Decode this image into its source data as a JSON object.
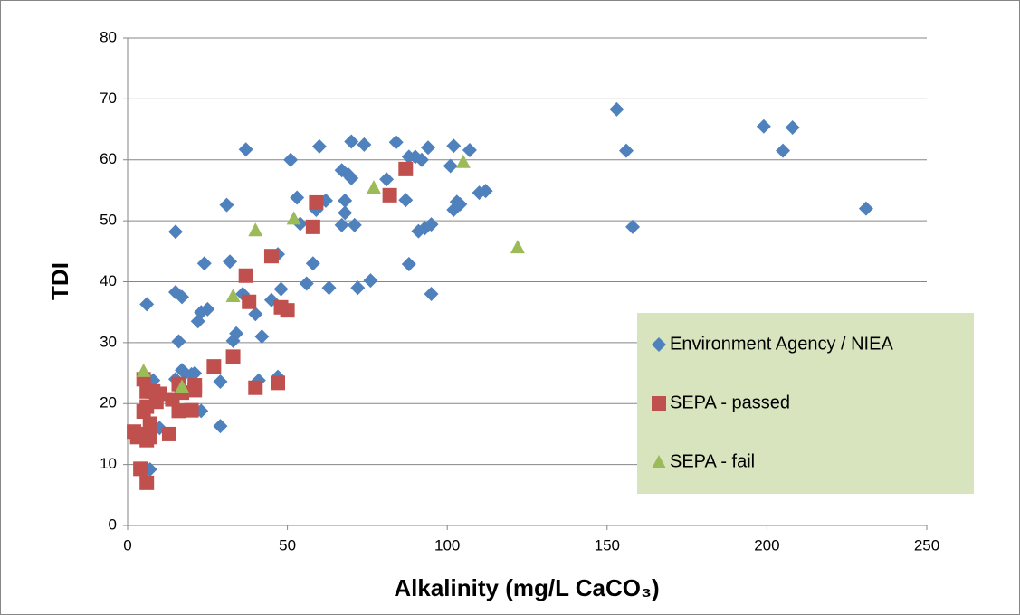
{
  "chart_data": {
    "type": "scatter",
    "xlabel": "Alkalinity (mg/L CaCO₃)",
    "ylabel": "TDI",
    "xlim": [
      0,
      250
    ],
    "xticks": [
      0,
      50,
      100,
      150,
      200,
      250
    ],
    "ylim": [
      0,
      80
    ],
    "yticks": [
      0,
      10,
      20,
      30,
      40,
      50,
      60,
      70,
      80
    ],
    "grid": true,
    "legend": "lower right",
    "legend_color": "#d7e4bd",
    "series": [
      {
        "name": "Environment Agency / NIEA",
        "color": "#4f81bd",
        "marker": "diamond",
        "x": [
          6,
          7,
          6,
          8,
          10,
          15,
          15,
          15,
          17,
          16,
          17,
          18,
          20,
          21,
          22,
          23,
          23,
          24,
          25,
          29,
          29,
          31,
          32,
          33,
          34,
          36,
          37,
          40,
          41,
          42,
          45,
          47,
          47,
          48,
          51,
          53,
          54,
          56,
          58,
          59,
          60,
          62,
          63,
          67,
          67,
          68,
          68,
          69,
          70,
          70,
          71,
          72,
          74,
          76,
          81,
          84,
          87,
          88,
          88,
          90,
          91,
          92,
          93,
          94,
          95,
          95,
          101,
          102,
          102,
          103,
          104,
          107,
          110,
          112,
          153,
          156,
          158,
          199,
          205,
          208,
          231
        ],
        "values": [
          36.3,
          9.2,
          14,
          23.8,
          16,
          48.2,
          38.3,
          24,
          37.5,
          30.2,
          25.5,
          25,
          24.8,
          25,
          33.5,
          18.8,
          35,
          43,
          35.5,
          16.3,
          23.6,
          52.6,
          43.3,
          30.3,
          31.5,
          38,
          61.7,
          34.7,
          23.8,
          31,
          37,
          44.5,
          24.4,
          38.8,
          60,
          53.8,
          49.5,
          39.7,
          43,
          51.8,
          62.2,
          53.3,
          39,
          58.3,
          49.3,
          53.3,
          51.3,
          57.6,
          57,
          63,
          49.3,
          39,
          62.5,
          40.2,
          56.8,
          62.9,
          53.4,
          60.5,
          42.9,
          60.5,
          48.3,
          60,
          48.8,
          62,
          49.4,
          38,
          59,
          62.3,
          51.8,
          53.1,
          52.7,
          61.6,
          54.6,
          54.9,
          68.3,
          61.5,
          49,
          65.5,
          61.5,
          65.3,
          52
        ]
      },
      {
        "name": "SEPA - passed",
        "color": "#c0504d",
        "marker": "square",
        "x": [
          2,
          3,
          4,
          4,
          5,
          5,
          6,
          6,
          6,
          6,
          7,
          7,
          8,
          9,
          10,
          13,
          14,
          16,
          16,
          17,
          20,
          21,
          21,
          27,
          33,
          37,
          38,
          40,
          45,
          47,
          48,
          50,
          58,
          59,
          82,
          87
        ],
        "values": [
          15.4,
          14.5,
          9.3,
          15,
          24,
          18.7,
          22,
          14,
          19.5,
          7,
          16.7,
          14.5,
          22,
          20.3,
          21.6,
          15,
          20.7,
          23.2,
          18.8,
          21.8,
          18.9,
          23,
          22.2,
          26.1,
          27.7,
          41,
          36.7,
          22.6,
          44.2,
          23.4,
          35.8,
          35.3,
          49,
          53,
          54.2,
          58.5
        ]
      },
      {
        "name": "SEPA - fail",
        "color": "#9bbb59",
        "marker": "triangle",
        "x": [
          5,
          17,
          33,
          40,
          52,
          77,
          105,
          122
        ],
        "values": [
          25.4,
          22.8,
          37.7,
          48.5,
          50.4,
          55.5,
          59.7,
          45.7
        ]
      }
    ]
  }
}
